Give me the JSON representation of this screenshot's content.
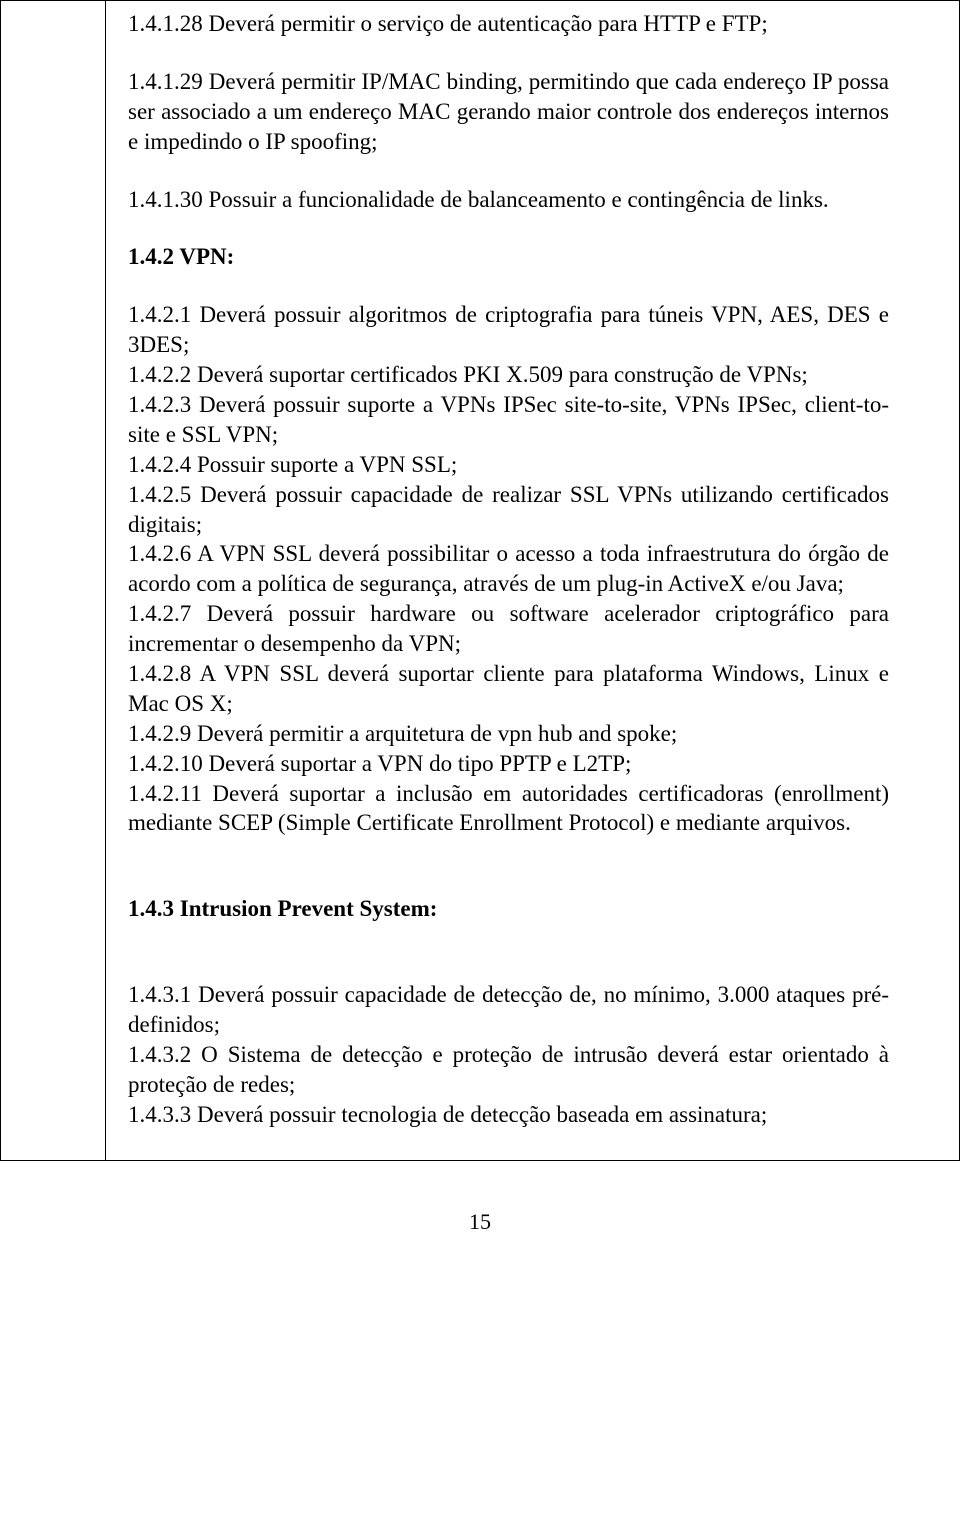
{
  "items": {
    "p1": "1.4.1.28 Deverá permitir o serviço de autenticação para HTTP e FTP;",
    "p2": "1.4.1.29 Deverá permitir IP/MAC binding, permitindo que cada endereço IP possa ser associado a um endereço MAC gerando maior controle dos endereços internos e impedindo o IP spoofing;",
    "p3": "1.4.1.30 Possuir a funcionalidade de balanceamento e contingência de links.",
    "h1": "1.4.2 VPN:",
    "p4": "1.4.2.1 Deverá possuir algoritmos de criptografia para túneis VPN, AES, DES e 3DES;",
    "p5": "1.4.2.2 Deverá suportar certificados PKI X.509 para construção de VPNs;",
    "p6": "1.4.2.3 Deverá possuir suporte a VPNs IPSec site-to-site, VPNs IPSec, client-to-site e SSL VPN;",
    "p7": "1.4.2.4 Possuir suporte a VPN SSL;",
    "p8": "1.4.2.5 Deverá possuir capacidade de realizar SSL VPNs utilizando certificados digitais;",
    "p9": "1.4.2.6 A VPN SSL deverá possibilitar o acesso a toda infraestrutura do órgão de acordo com a política de segurança, através de um plug-in ActiveX e/ou Java;",
    "p10": "1.4.2.7 Deverá possuir hardware ou software acelerador criptográfico para incrementar o desempenho da VPN;",
    "p11": "1.4.2.8 A VPN SSL deverá suportar cliente para plataforma Windows, Linux e Mac OS X;",
    "p12": "1.4.2.9 Deverá permitir a arquitetura de vpn hub and spoke;",
    "p13": "1.4.2.10 Deverá suportar a VPN do tipo PPTP e L2TP;",
    "p14": "1.4.2.11 Deverá suportar a inclusão em autoridades certificadoras (enrollment) mediante SCEP (Simple Certificate Enrollment Protocol) e mediante arquivos.",
    "h2": "1.4.3 Intrusion Prevent System:",
    "p15": "1.4.3.1 Deverá possuir capacidade de detecção de, no mínimo, 3.000 ataques pré-definidos;",
    "p16": "1.4.3.2 O Sistema de detecção e proteção de intrusão deverá estar orientado à proteção de redes;",
    "p17": "1.4.3.3 Deverá possuir tecnologia de detecção baseada em assinatura;"
  },
  "pageNumber": "15"
}
